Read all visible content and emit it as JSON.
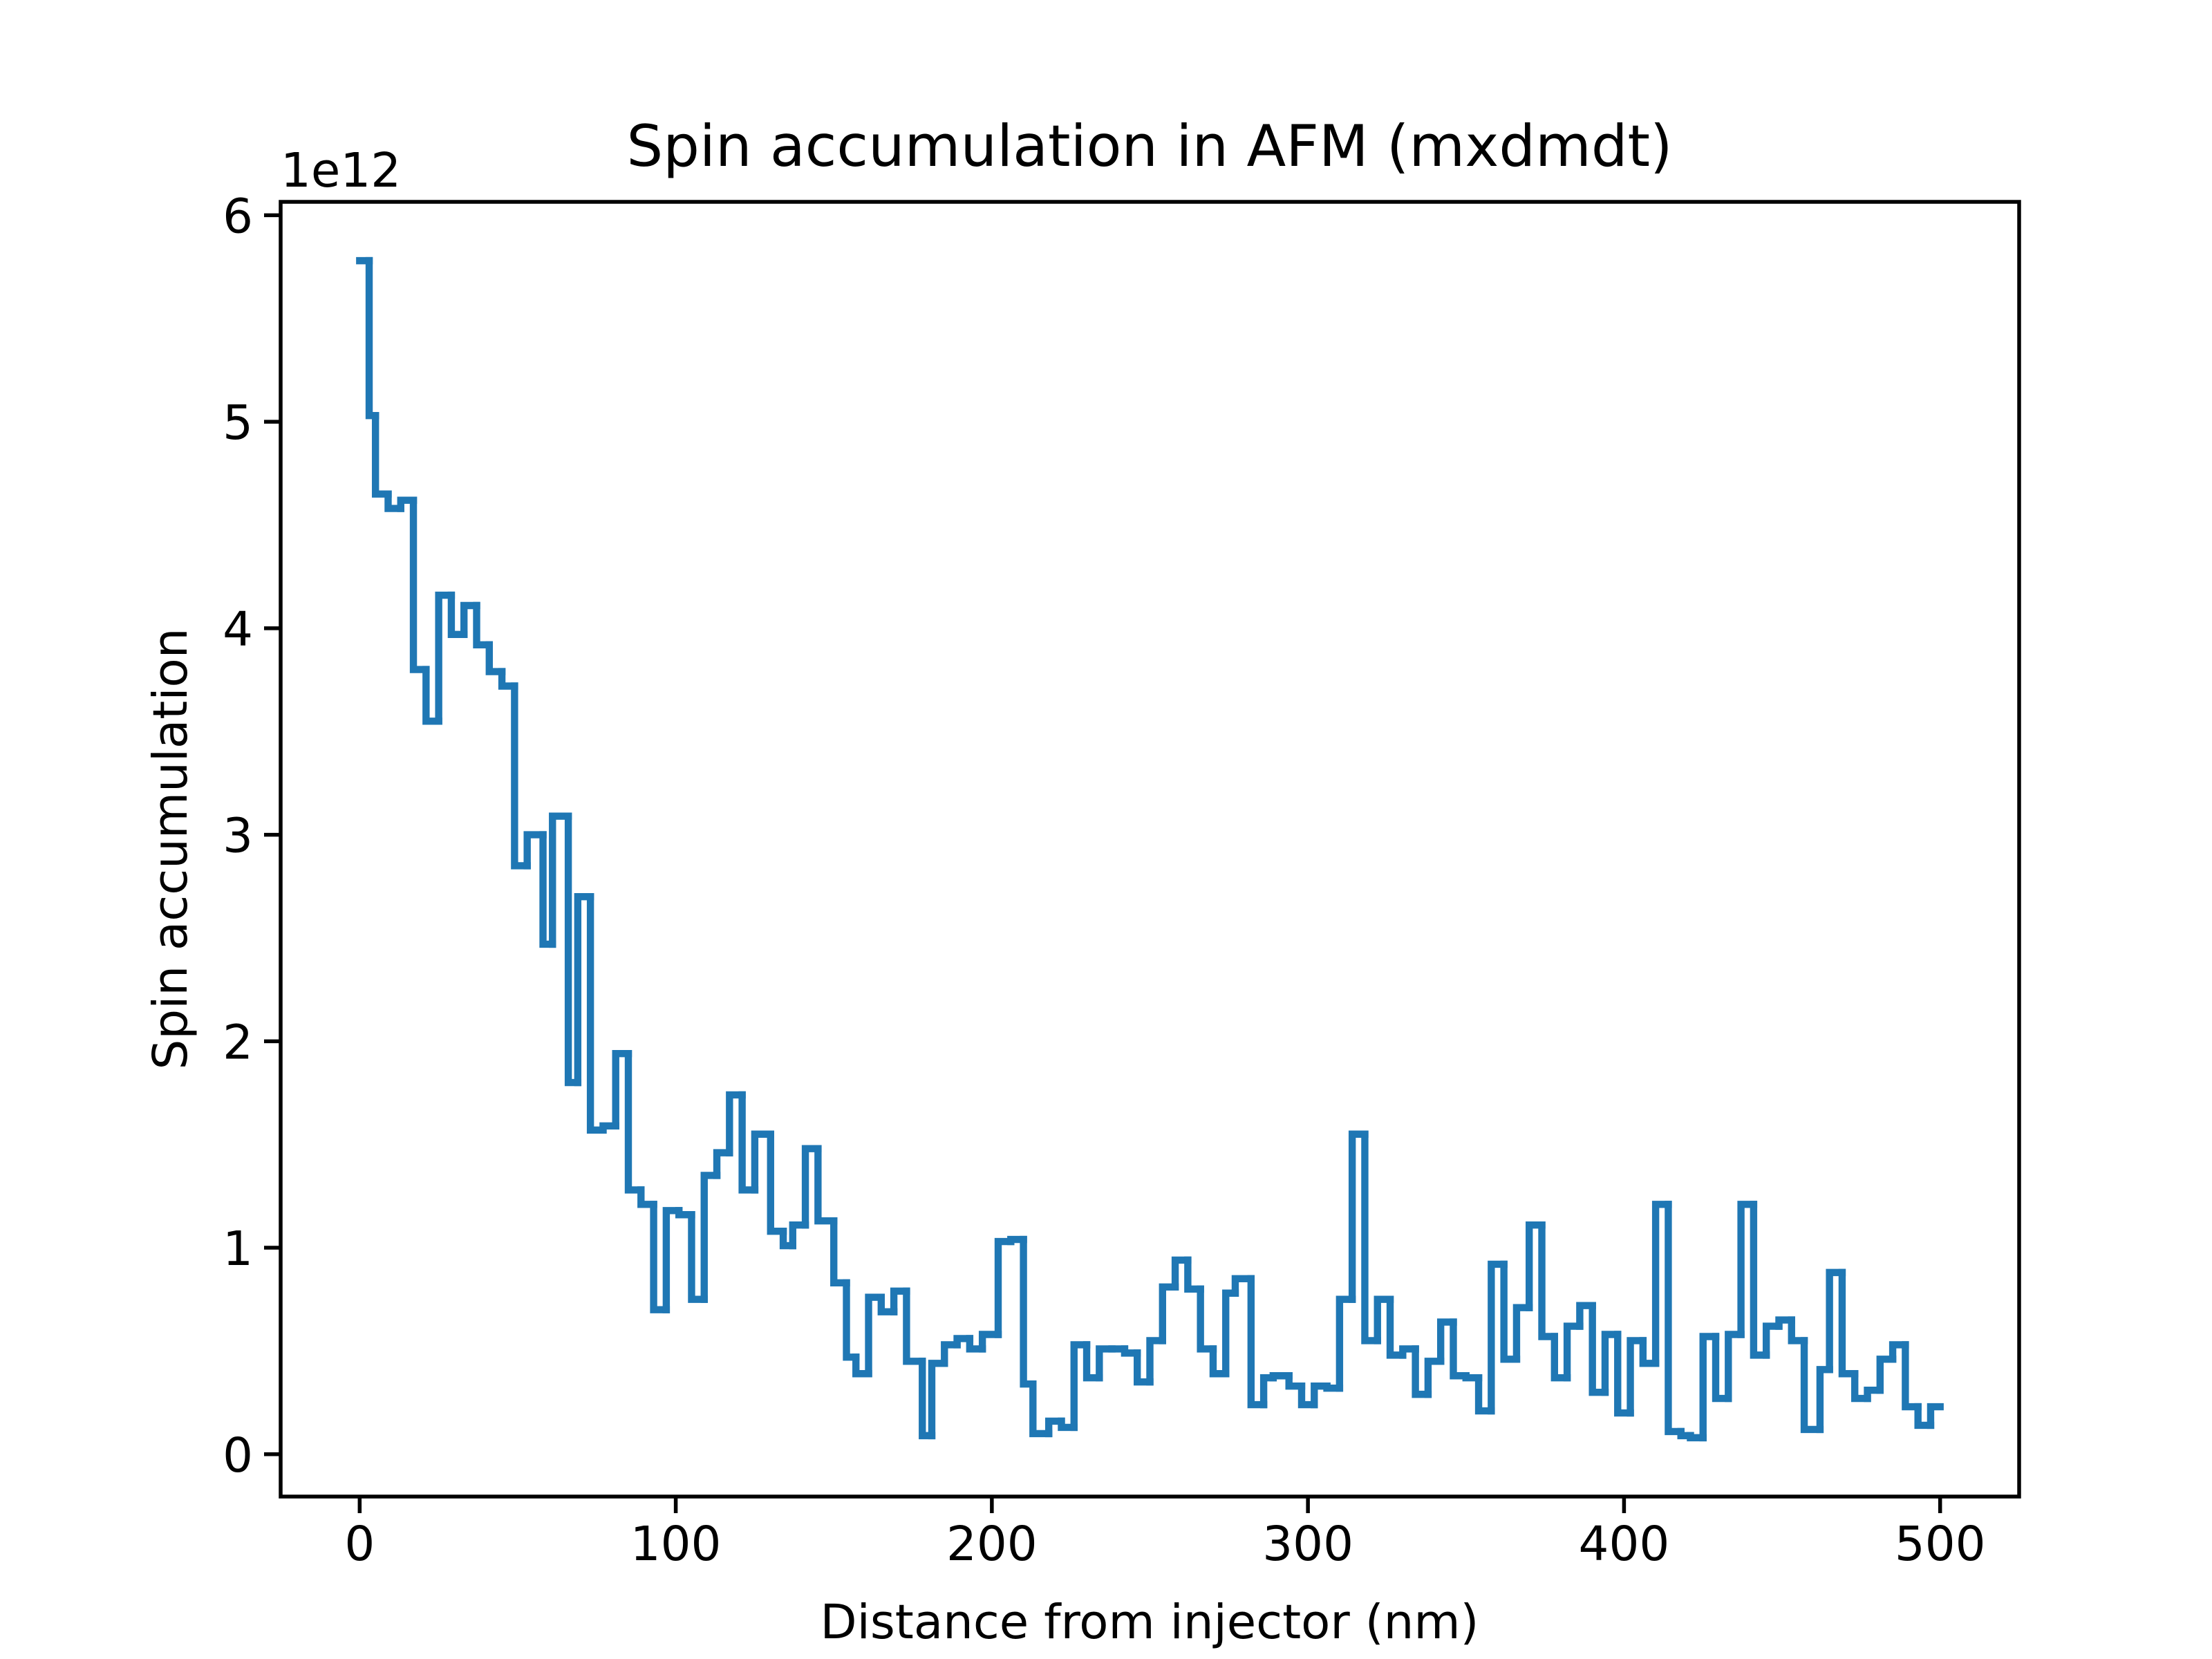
{
  "chart_data": {
    "type": "step",
    "title": "Spin accumulation in AFM (mxdmdt)",
    "x_label": "Distance from injector (nm)",
    "y_label": "Spin accumulation",
    "y_offset_label": "1e12",
    "color": "#1f77b4",
    "xlim": [
      -25,
      525
    ],
    "ylim": [
      -0.205,
      6.065
    ],
    "xticks": [
      0,
      100,
      200,
      300,
      400,
      500
    ],
    "yticks": [
      0,
      1,
      2,
      3,
      4,
      5,
      6
    ],
    "x_edges": [
      0,
      3,
      5,
      9,
      13,
      17,
      21,
      25,
      29,
      33,
      37,
      41,
      45,
      49,
      53,
      58,
      61,
      66,
      69,
      73,
      77,
      81,
      85,
      89,
      93,
      97,
      101,
      105,
      109,
      113,
      117,
      121,
      125,
      130,
      134,
      137,
      141,
      145,
      150,
      154,
      157,
      161,
      165,
      169,
      173,
      178,
      181,
      185,
      189,
      193,
      197,
      202,
      206,
      210,
      213,
      218,
      222,
      226,
      230,
      234,
      238,
      242,
      246,
      250,
      254,
      258,
      262,
      266,
      270,
      274,
      277,
      282,
      286,
      289,
      294,
      298,
      302,
      306,
      310,
      314,
      318,
      322,
      326,
      330,
      334,
      338,
      342,
      346,
      350,
      354,
      358,
      362,
      366,
      370,
      374,
      378,
      382,
      386,
      390,
      394,
      398,
      402,
      406,
      410,
      414,
      418,
      421,
      425,
      429,
      433,
      437,
      441,
      445,
      449,
      453,
      457,
      462,
      465,
      469,
      473,
      477,
      481,
      485,
      489,
      493,
      497,
      500
    ],
    "values": [
      5.78,
      5.03,
      4.65,
      4.58,
      4.62,
      3.8,
      3.55,
      4.16,
      3.97,
      4.11,
      3.92,
      3.79,
      3.72,
      2.85,
      3.0,
      2.47,
      3.09,
      1.8,
      2.7,
      1.57,
      1.59,
      1.94,
      1.28,
      1.21,
      0.7,
      1.18,
      1.16,
      0.75,
      1.35,
      1.46,
      1.74,
      1.28,
      1.55,
      1.08,
      1.01,
      1.11,
      1.48,
      1.13,
      0.83,
      0.47,
      0.39,
      0.76,
      0.69,
      0.79,
      0.45,
      0.09,
      0.44,
      0.53,
      0.56,
      0.51,
      0.58,
      1.03,
      1.04,
      0.34,
      0.1,
      0.16,
      0.13,
      0.53,
      0.37,
      0.51,
      0.51,
      0.49,
      0.35,
      0.55,
      0.81,
      0.94,
      0.8,
      0.51,
      0.39,
      0.78,
      0.85,
      0.24,
      0.37,
      0.38,
      0.33,
      0.24,
      0.33,
      0.32,
      0.75,
      1.55,
      0.55,
      0.75,
      0.48,
      0.51,
      0.29,
      0.45,
      0.64,
      0.38,
      0.37,
      0.21,
      0.92,
      0.46,
      0.71,
      1.11,
      0.57,
      0.37,
      0.62,
      0.72,
      0.3,
      0.58,
      0.2,
      0.55,
      0.44,
      1.21,
      0.11,
      0.09,
      0.08,
      0.57,
      0.27,
      0.58,
      1.21,
      0.48,
      0.62,
      0.65,
      0.55,
      0.12,
      0.41,
      0.88,
      0.39,
      0.27,
      0.31,
      0.46,
      0.53,
      0.23,
      0.14,
      0.23
    ]
  }
}
